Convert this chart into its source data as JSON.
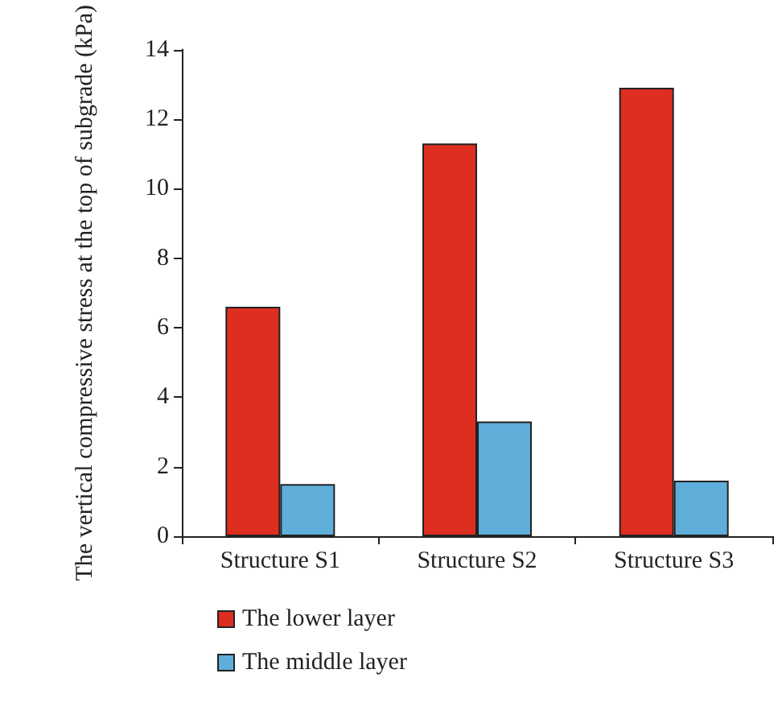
{
  "chart_data": {
    "type": "bar",
    "ylabel": "The vertical compressive stress at the top of subgrade (kPa)",
    "categories": [
      "Structure S1",
      "Structure S2",
      "Structure S3"
    ],
    "series": [
      {
        "name": "The lower layer",
        "color": "#dd2e1f",
        "values": [
          6.6,
          11.3,
          12.9
        ]
      },
      {
        "name": "The middle layer",
        "color": "#5eaed9",
        "values": [
          1.5,
          3.3,
          1.6
        ]
      }
    ],
    "ylim": [
      0,
      14
    ],
    "yticks": [
      0,
      2,
      4,
      6,
      8,
      10,
      12,
      14
    ],
    "grid": false,
    "legend": "bottom"
  }
}
